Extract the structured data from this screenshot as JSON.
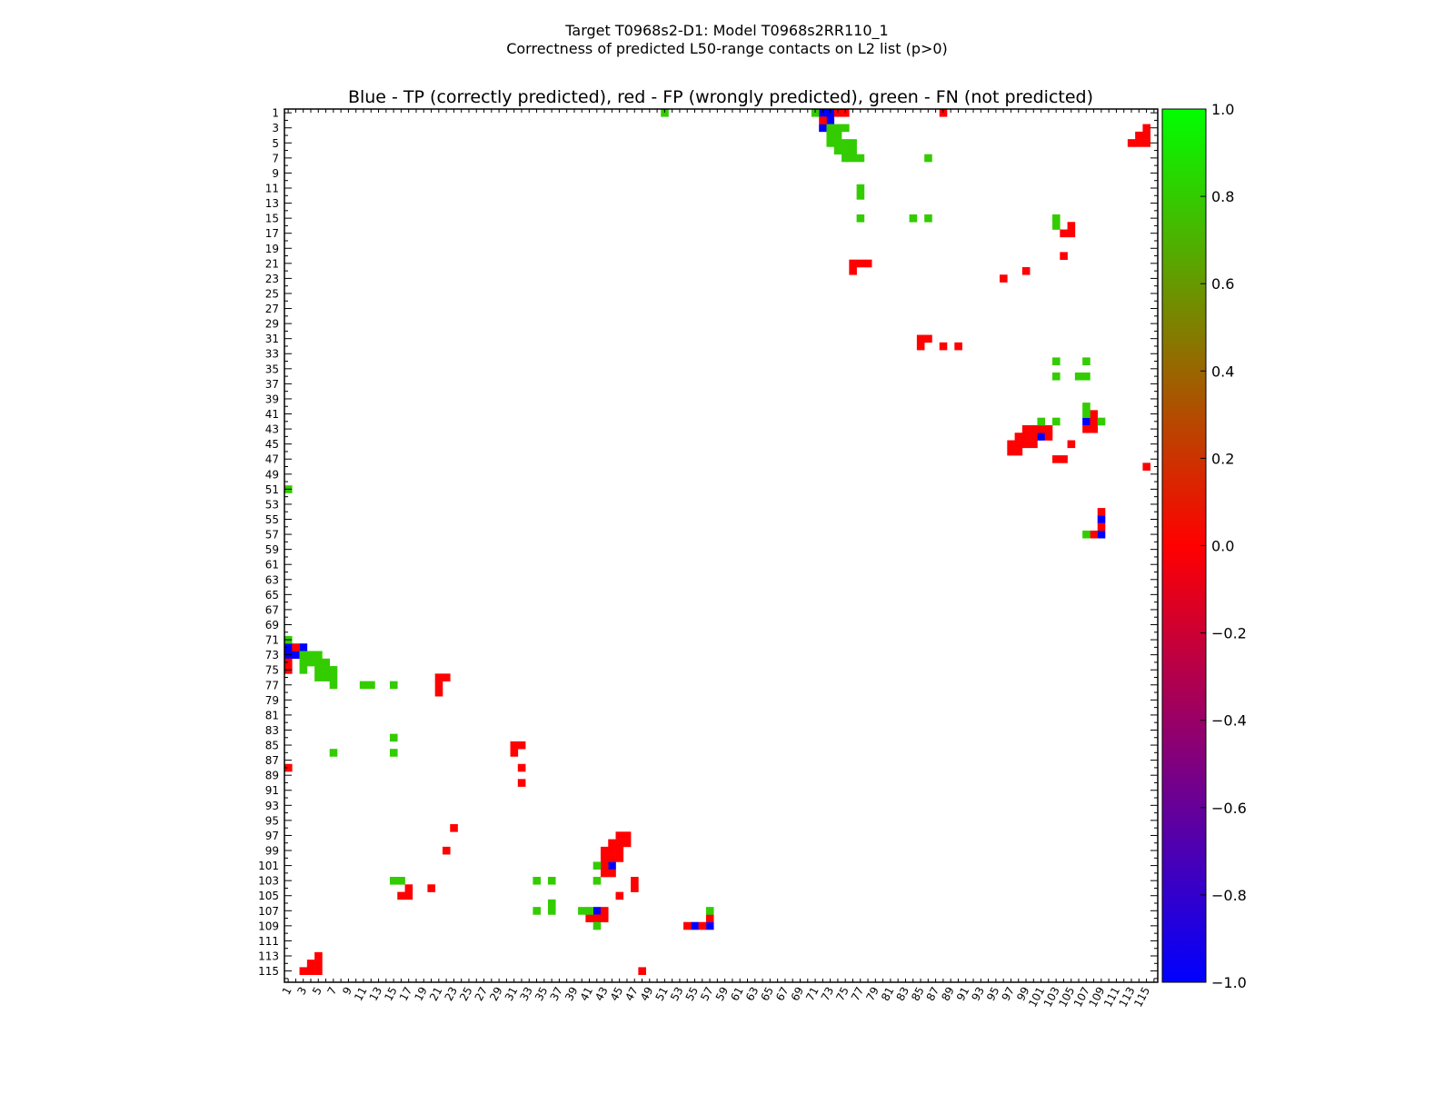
{
  "chart_data": {
    "type": "heatmap",
    "title_line1": "Target T0968s2-D1: Model T0968s2RR110_1",
    "title_line2": "Correctness of predicted L50-range contacts on L2 list (p>0)",
    "subtitle": "Blue - TP (correctly predicted), red - FP (wrongly predicted), green - FN (not predicted)",
    "grid_size": 116,
    "tick_labels": [
      1,
      3,
      5,
      7,
      9,
      11,
      13,
      15,
      17,
      19,
      21,
      23,
      25,
      27,
      29,
      31,
      33,
      35,
      37,
      39,
      41,
      43,
      45,
      47,
      49,
      51,
      53,
      55,
      57,
      59,
      61,
      63,
      65,
      67,
      69,
      71,
      73,
      75,
      77,
      79,
      81,
      83,
      85,
      87,
      89,
      91,
      93,
      95,
      97,
      99,
      101,
      103,
      105,
      107,
      109,
      111,
      113,
      115
    ],
    "symmetric": true,
    "value_legend": {
      "TP": -1.0,
      "FP": 0.0,
      "FN": 0.8
    },
    "colors": {
      "TP": "#0000ff",
      "FP": "#ff0000",
      "FN": "#33cc00"
    },
    "contacts_upper": {
      "TP": [
        [
          1,
          72
        ],
        [
          1,
          73
        ],
        [
          2,
          73
        ],
        [
          3,
          72
        ],
        [
          42,
          107
        ],
        [
          44,
          101
        ],
        [
          55,
          109
        ],
        [
          57,
          109
        ]
      ],
      "FP": [
        [
          1,
          74
        ],
        [
          1,
          75
        ],
        [
          1,
          88
        ],
        [
          2,
          72
        ],
        [
          3,
          115
        ],
        [
          4,
          114
        ],
        [
          4,
          115
        ],
        [
          5,
          113
        ],
        [
          5,
          114
        ],
        [
          5,
          115
        ],
        [
          16,
          105
        ],
        [
          17,
          104
        ],
        [
          17,
          105
        ],
        [
          20,
          104
        ],
        [
          21,
          76
        ],
        [
          21,
          77
        ],
        [
          21,
          78
        ],
        [
          22,
          76
        ],
        [
          22,
          99
        ],
        [
          23,
          96
        ],
        [
          31,
          85
        ],
        [
          31,
          86
        ],
        [
          32,
          85
        ],
        [
          32,
          88
        ],
        [
          32,
          90
        ],
        [
          41,
          108
        ],
        [
          42,
          108
        ],
        [
          43,
          99
        ],
        [
          43,
          100
        ],
        [
          43,
          101
        ],
        [
          43,
          102
        ],
        [
          43,
          107
        ],
        [
          43,
          108
        ],
        [
          44,
          98
        ],
        [
          44,
          99
        ],
        [
          44,
          100
        ],
        [
          44,
          102
        ],
        [
          45,
          97
        ],
        [
          45,
          98
        ],
        [
          45,
          99
        ],
        [
          45,
          100
        ],
        [
          45,
          105
        ],
        [
          46,
          97
        ],
        [
          46,
          98
        ],
        [
          47,
          103
        ],
        [
          47,
          104
        ],
        [
          48,
          115
        ],
        [
          54,
          109
        ],
        [
          56,
          109
        ],
        [
          57,
          108
        ]
      ],
      "FN": [
        [
          1,
          51
        ],
        [
          1,
          71
        ],
        [
          3,
          73
        ],
        [
          3,
          74
        ],
        [
          3,
          75
        ],
        [
          4,
          73
        ],
        [
          4,
          74
        ],
        [
          5,
          73
        ],
        [
          5,
          74
        ],
        [
          5,
          75
        ],
        [
          5,
          76
        ],
        [
          6,
          74
        ],
        [
          6,
          75
        ],
        [
          6,
          76
        ],
        [
          7,
          75
        ],
        [
          7,
          76
        ],
        [
          7,
          77
        ],
        [
          7,
          86
        ],
        [
          11,
          77
        ],
        [
          12,
          77
        ],
        [
          15,
          77
        ],
        [
          15,
          84
        ],
        [
          15,
          86
        ],
        [
          15,
          103
        ],
        [
          16,
          103
        ],
        [
          34,
          103
        ],
        [
          34,
          107
        ],
        [
          36,
          103
        ],
        [
          36,
          106
        ],
        [
          36,
          107
        ],
        [
          40,
          107
        ],
        [
          41,
          107
        ],
        [
          42,
          101
        ],
        [
          42,
          103
        ],
        [
          42,
          109
        ],
        [
          57,
          107
        ]
      ]
    },
    "colorbar": {
      "range": [
        -1.0,
        1.0
      ],
      "ticks": [
        "1.0",
        "0.8",
        "0.6",
        "0.4",
        "0.2",
        "0.0",
        "−0.2",
        "−0.4",
        "−0.6",
        "−0.8",
        "−1.0"
      ],
      "tick_values": [
        1.0,
        0.8,
        0.6,
        0.4,
        0.2,
        0.0,
        -0.2,
        -0.4,
        -0.6,
        -0.8,
        -1.0
      ],
      "stops": [
        "#00ff00",
        "#ff0000",
        "#0000ff"
      ]
    }
  }
}
